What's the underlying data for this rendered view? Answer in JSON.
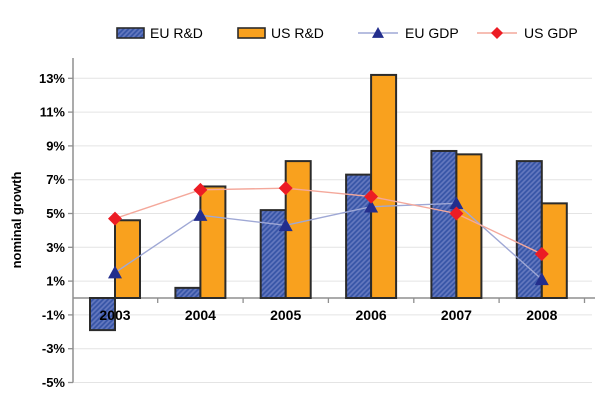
{
  "chart_data": {
    "type": "bar+line",
    "title": "",
    "ylabel": "nominal growth",
    "xlabel": "",
    "categories": [
      "2003",
      "2004",
      "2005",
      "2006",
      "2007",
      "2008"
    ],
    "series": [
      {
        "name": "EU R&D",
        "kind": "bar",
        "style": "hatched-blue",
        "values": [
          -1.9,
          0.6,
          5.2,
          7.3,
          8.7,
          8.1
        ]
      },
      {
        "name": "US R&D",
        "kind": "bar",
        "style": "solid-orange",
        "values": [
          4.6,
          6.6,
          8.1,
          13.2,
          8.5,
          5.6
        ]
      },
      {
        "name": "EU GDP",
        "kind": "line",
        "marker": "triangle",
        "values": [
          1.5,
          4.9,
          4.3,
          5.4,
          5.6,
          1.1
        ]
      },
      {
        "name": "US GDP",
        "kind": "line",
        "marker": "diamond",
        "values": [
          4.7,
          6.4,
          6.5,
          6.0,
          5.0,
          2.6
        ]
      }
    ],
    "yticks": [
      -5,
      -3,
      -1,
      1,
      3,
      5,
      7,
      9,
      11,
      13
    ],
    "ytick_labels": [
      "-5%",
      "-3%",
      "-1%",
      "1%",
      "3%",
      "5%",
      "7%",
      "9%",
      "11%",
      "13%"
    ],
    "ylim": [
      -5,
      14.2
    ],
    "grid": true,
    "legend_position": "top"
  },
  "colors": {
    "eu_bar_base": "#3A57A8",
    "eu_bar_hatch": "#6478BF",
    "us_bar": "#F9A11E",
    "bar_border": "#2B2B2B",
    "eu_line": "#9FA8D5",
    "eu_marker": "#232E8D",
    "us_line": "#F4A89B",
    "us_marker": "#EC1C24",
    "axis": "#8F8F8F",
    "grid": "#E4E4E4",
    "text": "#000000",
    "background": "#FFFFFF"
  }
}
